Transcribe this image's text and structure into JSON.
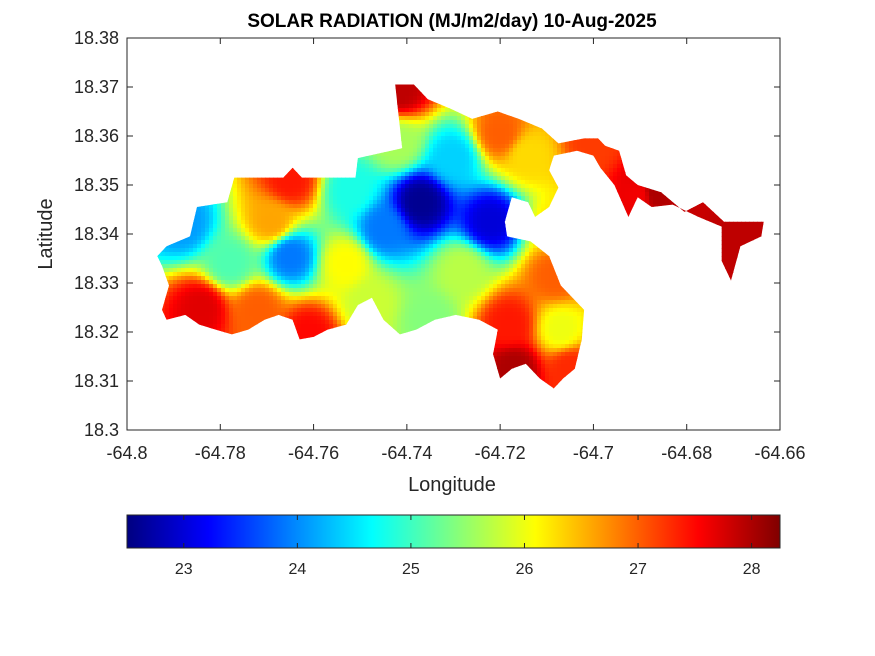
{
  "chart_data": {
    "type": "heatmap",
    "title": "SOLAR RADIATION (MJ/m2/day) 10-Aug-2025",
    "xlabel": "Longitude",
    "ylabel": "Latitude",
    "xlim": [
      -64.8,
      -64.66
    ],
    "ylim": [
      18.3,
      18.38
    ],
    "xticks": [
      "-64.8",
      "-64.78",
      "-64.76",
      "-64.74",
      "-64.72",
      "-64.7",
      "-64.68",
      "-64.66"
    ],
    "yticks": [
      "18.3",
      "18.31",
      "18.32",
      "18.33",
      "18.34",
      "18.35",
      "18.36",
      "18.37",
      "18.38"
    ],
    "colormap": "jet",
    "clim": [
      22.5,
      28.25
    ],
    "colorbar": {
      "location": "bottom",
      "ticks": [
        "23",
        "24",
        "25",
        "26",
        "27",
        "28"
      ]
    },
    "field_points": [
      {
        "lon": -64.737,
        "lat": 18.3465,
        "value": 22.6
      },
      {
        "lon": -64.722,
        "lat": 18.3425,
        "value": 23.0
      },
      {
        "lon": -64.745,
        "lat": 18.341,
        "value": 23.9
      },
      {
        "lon": -64.765,
        "lat": 18.3355,
        "value": 23.9
      },
      {
        "lon": -64.788,
        "lat": 18.342,
        "value": 24.1
      },
      {
        "lon": -64.73,
        "lat": 18.3555,
        "value": 24.4
      },
      {
        "lon": -64.752,
        "lat": 18.349,
        "value": 24.8
      },
      {
        "lon": -64.778,
        "lat": 18.334,
        "value": 25.1
      },
      {
        "lon": -64.742,
        "lat": 18.3585,
        "value": 25.6
      },
      {
        "lon": -64.728,
        "lat": 18.3325,
        "value": 25.7
      },
      {
        "lon": -64.748,
        "lat": 18.326,
        "value": 25.8
      },
      {
        "lon": -64.735,
        "lat": 18.3225,
        "value": 25.4
      },
      {
        "lon": -64.753,
        "lat": 18.334,
        "value": 26.1
      },
      {
        "lon": -64.714,
        "lat": 18.356,
        "value": 26.3
      },
      {
        "lon": -64.7075,
        "lat": 18.342,
        "value": 26.2
      },
      {
        "lon": -64.707,
        "lat": 18.3205,
        "value": 26.0
      },
      {
        "lon": -64.769,
        "lat": 18.3425,
        "value": 26.6
      },
      {
        "lon": -64.772,
        "lat": 18.3245,
        "value": 27.0
      },
      {
        "lon": -64.7,
        "lat": 18.359,
        "value": 27.2
      },
      {
        "lon": -64.718,
        "lat": 18.3215,
        "value": 27.4
      },
      {
        "lon": -64.72,
        "lat": 18.3605,
        "value": 27.0
      },
      {
        "lon": -64.708,
        "lat": 18.3315,
        "value": 27.0
      },
      {
        "lon": -64.765,
        "lat": 18.351,
        "value": 27.4
      },
      {
        "lon": -64.761,
        "lat": 18.3195,
        "value": 27.5
      },
      {
        "lon": -64.784,
        "lat": 18.325,
        "value": 27.7
      },
      {
        "lon": -64.69,
        "lat": 18.348,
        "value": 27.6
      },
      {
        "lon": -64.705,
        "lat": 18.3125,
        "value": 27.3
      },
      {
        "lon": -64.7415,
        "lat": 18.3695,
        "value": 27.9
      },
      {
        "lon": -64.687,
        "lat": 18.3485,
        "value": 28.0
      },
      {
        "lon": -64.668,
        "lat": 18.3395,
        "value": 27.9
      },
      {
        "lon": -64.717,
        "lat": 18.3125,
        "value": 28.0
      }
    ],
    "land_outline": [
      [
        -64.7935,
        18.3355
      ],
      [
        -64.7915,
        18.3375
      ],
      [
        -64.7865,
        18.3395
      ],
      [
        -64.785,
        18.3455
      ],
      [
        -64.7785,
        18.3465
      ],
      [
        -64.777,
        18.3515
      ],
      [
        -64.7665,
        18.3515
      ],
      [
        -64.7645,
        18.3535
      ],
      [
        -64.7625,
        18.3515
      ],
      [
        -64.751,
        18.3515
      ],
      [
        -64.7505,
        18.3555
      ],
      [
        -64.741,
        18.3575
      ],
      [
        -64.7425,
        18.3705
      ],
      [
        -64.7385,
        18.3705
      ],
      [
        -64.7355,
        18.3675
      ],
      [
        -64.7305,
        18.3655
      ],
      [
        -64.726,
        18.3635
      ],
      [
        -64.7205,
        18.365
      ],
      [
        -64.716,
        18.3635
      ],
      [
        -64.711,
        18.3615
      ],
      [
        -64.7075,
        18.3585
      ],
      [
        -64.702,
        18.3595
      ],
      [
        -64.699,
        18.3595
      ],
      [
        -64.6975,
        18.358
      ],
      [
        -64.6945,
        18.357
      ],
      [
        -64.693,
        18.352
      ],
      [
        -64.6905,
        18.35
      ],
      [
        -64.6855,
        18.3485
      ],
      [
        -64.6805,
        18.3445
      ],
      [
        -64.6765,
        18.3465
      ],
      [
        -64.672,
        18.3425
      ],
      [
        -64.6635,
        18.3425
      ],
      [
        -64.664,
        18.3395
      ],
      [
        -64.6685,
        18.3375
      ],
      [
        -64.6705,
        18.3305
      ],
      [
        -64.6725,
        18.3345
      ],
      [
        -64.6725,
        18.3415
      ],
      [
        -64.6775,
        18.3435
      ],
      [
        -64.683,
        18.346
      ],
      [
        -64.6875,
        18.3455
      ],
      [
        -64.6905,
        18.3475
      ],
      [
        -64.6925,
        18.3435
      ],
      [
        -64.6955,
        18.35
      ],
      [
        -64.6985,
        18.3535
      ],
      [
        -64.7,
        18.356
      ],
      [
        -64.7035,
        18.357
      ],
      [
        -64.7085,
        18.356
      ],
      [
        -64.7095,
        18.353
      ],
      [
        -64.7075,
        18.3495
      ],
      [
        -64.7095,
        18.3455
      ],
      [
        -64.7125,
        18.3435
      ],
      [
        -64.714,
        18.3465
      ],
      [
        -64.7175,
        18.3475
      ],
      [
        -64.719,
        18.3425
      ],
      [
        -64.7185,
        18.3395
      ],
      [
        -64.7135,
        18.3385
      ],
      [
        -64.7095,
        18.3355
      ],
      [
        -64.707,
        18.3295
      ],
      [
        -64.702,
        18.3245
      ],
      [
        -64.7025,
        18.3185
      ],
      [
        -64.704,
        18.3125
      ],
      [
        -64.7065,
        18.3105
      ],
      [
        -64.7085,
        18.3085
      ],
      [
        -64.7115,
        18.3105
      ],
      [
        -64.7145,
        18.3135
      ],
      [
        -64.7175,
        18.3125
      ],
      [
        -64.72,
        18.3105
      ],
      [
        -64.7215,
        18.3155
      ],
      [
        -64.7205,
        18.3205
      ],
      [
        -64.7245,
        18.3225
      ],
      [
        -64.7295,
        18.3235
      ],
      [
        -64.734,
        18.3225
      ],
      [
        -64.738,
        18.3205
      ],
      [
        -64.7415,
        18.3195
      ],
      [
        -64.745,
        18.3225
      ],
      [
        -64.7475,
        18.327
      ],
      [
        -64.7505,
        18.3255
      ],
      [
        -64.753,
        18.3215
      ],
      [
        -64.757,
        18.3205
      ],
      [
        -64.76,
        18.319
      ],
      [
        -64.763,
        18.3185
      ],
      [
        -64.7645,
        18.3225
      ],
      [
        -64.7675,
        18.3235
      ],
      [
        -64.7705,
        18.3225
      ],
      [
        -64.774,
        18.3205
      ],
      [
        -64.7775,
        18.3195
      ],
      [
        -64.781,
        18.3205
      ],
      [
        -64.7845,
        18.3215
      ],
      [
        -64.7875,
        18.3235
      ],
      [
        -64.7915,
        18.3225
      ],
      [
        -64.7925,
        18.3245
      ],
      [
        -64.791,
        18.3295
      ],
      [
        -64.7925,
        18.3335
      ]
    ]
  }
}
